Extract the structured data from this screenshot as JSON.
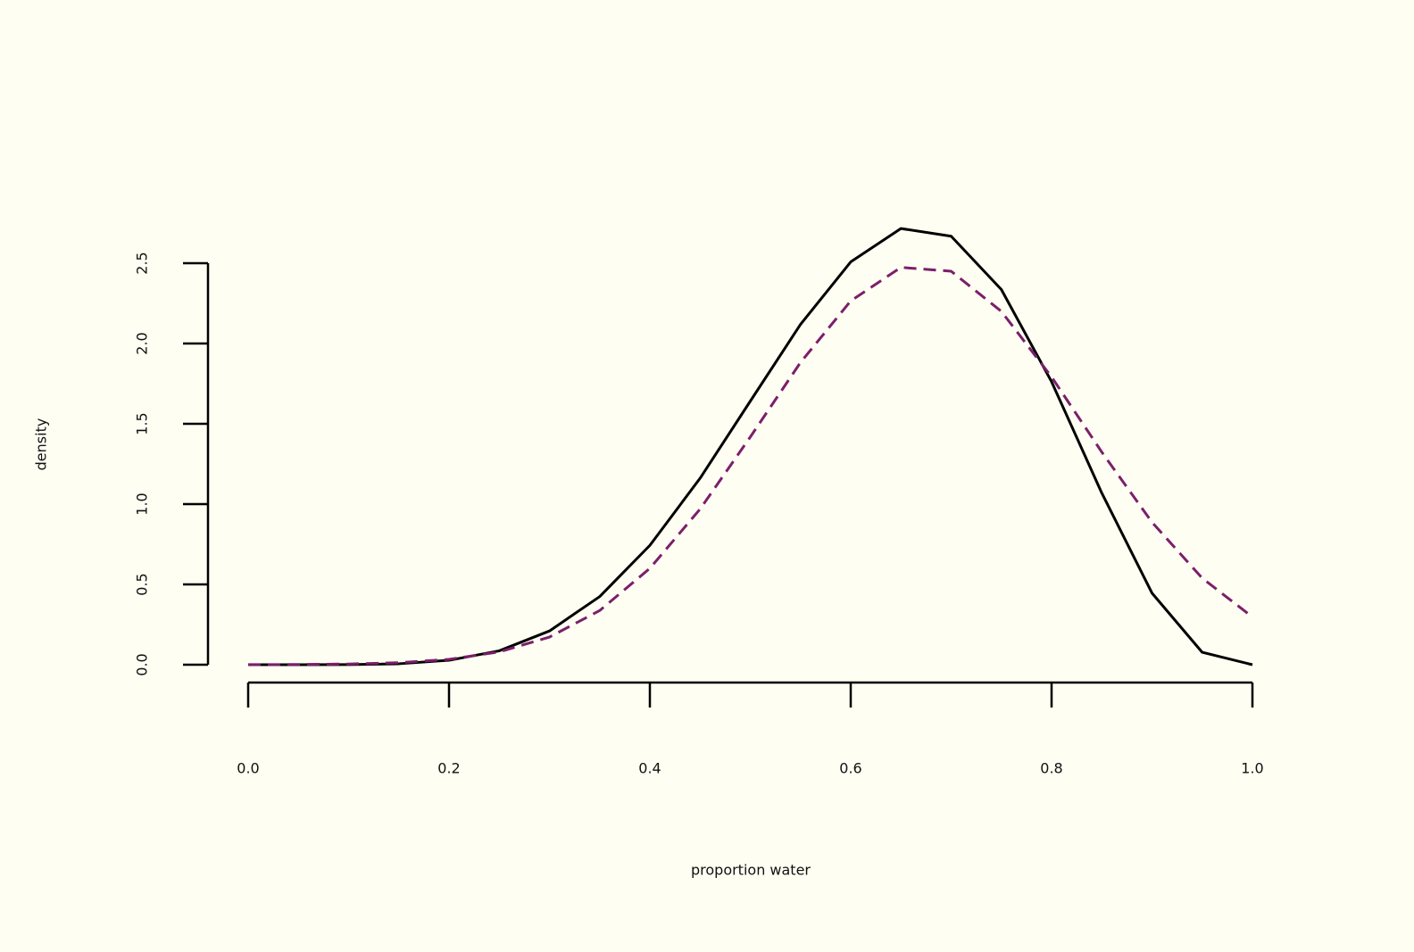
{
  "chart_data": {
    "type": "line",
    "x_label": "proportion water",
    "y_label": "density",
    "x": [
      0,
      0.05,
      0.1,
      0.15,
      0.2,
      0.25,
      0.3,
      0.35,
      0.4,
      0.45,
      0.5,
      0.55,
      0.6,
      0.65,
      0.7,
      0.75,
      0.8,
      0.85,
      0.9,
      0.95,
      1.0
    ],
    "series": [
      {
        "color": "#000000",
        "dashed": false,
        "values": [
          0,
          1e-05,
          0.0006,
          0.0059,
          0.0275,
          0.0865,
          0.21,
          0.424,
          0.743,
          1.161,
          1.641,
          2.119,
          2.508,
          2.716,
          2.668,
          2.336,
          1.762,
          1.069,
          0.446,
          0.0772,
          0
        ]
      },
      {
        "color": "#7b1f6b",
        "dashed": true,
        "values": [
          0.0004,
          0.0014,
          0.0044,
          0.0127,
          0.0334,
          0.0795,
          0.172,
          0.337,
          0.6,
          0.969,
          1.418,
          1.882,
          2.265,
          2.474,
          2.45,
          2.2,
          1.792,
          1.324,
          0.887,
          0.539,
          0.297
        ]
      }
    ],
    "xlim": [
      0,
      1.0
    ],
    "xticks": [
      {
        "value": 0,
        "label": "0.0"
      },
      0.2,
      0.4,
      0.6,
      0.8,
      {
        "value": 1,
        "label": "1.0"
      }
    ],
    "ylim": [
      0,
      2.5
    ],
    "yticks": [
      {
        "value": 0,
        "label": "0.0"
      },
      0.5,
      {
        "value": 1,
        "label": "1.0"
      },
      1.5,
      {
        "value": 2,
        "label": "2.0"
      },
      2.5
    ]
  }
}
